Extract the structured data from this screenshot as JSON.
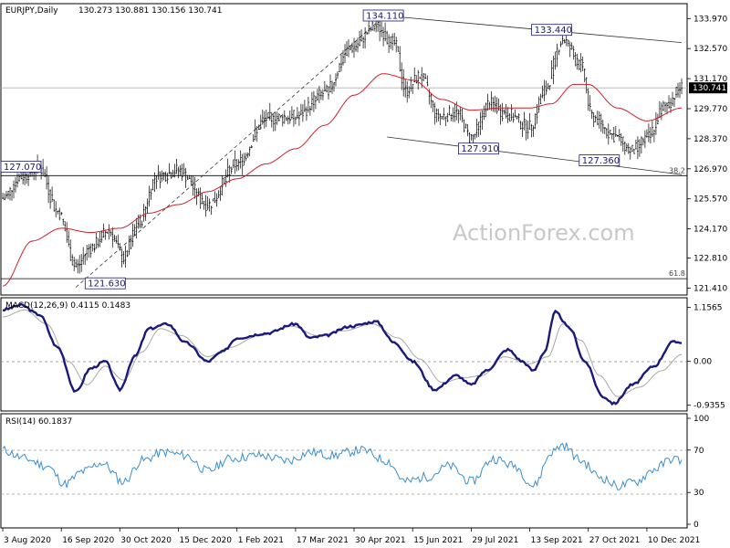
{
  "chart_data": {
    "type": "candlestick",
    "symbol_header": "EURJPY,Daily",
    "ohlc_header": "130.273 130.881 130.156 130.741",
    "watermark": "ActionForex.com",
    "price_axis": {
      "ticks": [
        "133.970",
        "132.570",
        "131.170",
        "129.770",
        "128.370",
        "126.970",
        "125.570",
        "124.170",
        "122.810",
        "121.410"
      ],
      "tick_values": [
        133.97,
        132.57,
        131.17,
        129.77,
        128.37,
        126.97,
        125.57,
        124.17,
        122.81,
        121.41
      ],
      "ylim": [
        121.3,
        134.45
      ],
      "last_price": "130.741",
      "last_value": 130.741
    },
    "x_axis": {
      "labels": [
        "3 Aug 2020",
        "16 Sep 2020",
        "30 Oct 2020",
        "15 Dec 2020",
        "1 Feb 2021",
        "17 Mar 2021",
        "30 Apr 2021",
        "15 Jun 2021",
        "29 Jul 2021",
        "13 Sep 2021",
        "27 Oct 2021",
        "10 Dec 2021"
      ],
      "label_bar_index": [
        0,
        32,
        64,
        96,
        128,
        160,
        192,
        224,
        256,
        288,
        320,
        352
      ],
      "total_bars": 372
    },
    "price_close_knots": [
      [
        0,
        125.6
      ],
      [
        10,
        126.6
      ],
      [
        20,
        127.0
      ],
      [
        30,
        125.0
      ],
      [
        40,
        122.4
      ],
      [
        48,
        123.3
      ],
      [
        58,
        124.1
      ],
      [
        66,
        122.8
      ],
      [
        74,
        124.4
      ],
      [
        84,
        126.6
      ],
      [
        96,
        126.9
      ],
      [
        112,
        125.3
      ],
      [
        128,
        127.2
      ],
      [
        144,
        129.3
      ],
      [
        160,
        129.4
      ],
      [
        176,
        130.5
      ],
      [
        190,
        132.6
      ],
      [
        204,
        133.6
      ],
      [
        214,
        132.8
      ],
      [
        220,
        130.6
      ],
      [
        228,
        131.3
      ],
      [
        238,
        129.4
      ],
      [
        248,
        129.6
      ],
      [
        256,
        128.4
      ],
      [
        266,
        130.0
      ],
      [
        276,
        129.5
      ],
      [
        288,
        128.9
      ],
      [
        296,
        130.6
      ],
      [
        306,
        133.0
      ],
      [
        316,
        131.8
      ],
      [
        322,
        129.4
      ],
      [
        334,
        128.5
      ],
      [
        344,
        127.8
      ],
      [
        352,
        128.4
      ],
      [
        362,
        129.9
      ],
      [
        371,
        130.741
      ]
    ],
    "moving_average_knots": [
      [
        0,
        121.5
      ],
      [
        16,
        123.6
      ],
      [
        32,
        124.2
      ],
      [
        48,
        124.0
      ],
      [
        64,
        124.2
      ],
      [
        80,
        124.9
      ],
      [
        96,
        125.3
      ],
      [
        112,
        125.9
      ],
      [
        128,
        126.5
      ],
      [
        144,
        127.2
      ],
      [
        160,
        127.9
      ],
      [
        176,
        129.0
      ],
      [
        192,
        130.4
      ],
      [
        208,
        131.4
      ],
      [
        224,
        131.1
      ],
      [
        240,
        130.2
      ],
      [
        256,
        129.7
      ],
      [
        272,
        129.8
      ],
      [
        288,
        129.8
      ],
      [
        300,
        130.0
      ],
      [
        312,
        130.9
      ],
      [
        320,
        130.9
      ],
      [
        336,
        129.8
      ],
      [
        352,
        129.2
      ],
      [
        371,
        129.8
      ]
    ],
    "annotations": [
      {
        "text": "134.110",
        "bar": 208,
        "value": 134.11
      },
      {
        "text": "133.440",
        "bar": 300,
        "value": 133.44
      },
      {
        "text": "127.070",
        "bar": 0,
        "value": 127.07
      },
      {
        "text": "121.630",
        "bar": 56,
        "value": 121.63
      },
      {
        "text": "127.910",
        "bar": 260,
        "value": 127.91
      },
      {
        "text": "127.360",
        "bar": 326,
        "value": 127.36
      }
    ],
    "fib_levels": [
      {
        "label": "38.2",
        "value": 126.65
      },
      {
        "label": "61.8",
        "value": 121.85
      }
    ],
    "horizontal_lines": [
      130.741,
      126.65,
      121.85
    ],
    "trendlines": [
      {
        "style": "dashed",
        "from": [
          40,
          121.45
        ],
        "to": [
          210,
          134.2
        ]
      },
      {
        "style": "solid",
        "from": [
          208,
          134.11
        ],
        "to": [
          371,
          132.85
        ]
      },
      {
        "style": "solid",
        "from": [
          210,
          128.45
        ],
        "to": [
          371,
          126.7
        ]
      }
    ],
    "macd": {
      "label": "MACD(12,26,9) 0.4115 0.1483",
      "ticks": [
        "1.1565",
        "0.00",
        "-0.9355"
      ],
      "tick_values": [
        1.1565,
        0.0,
        -0.9355
      ],
      "ylim": [
        -1.0,
        1.3
      ],
      "knots": [
        [
          0,
          1.1
        ],
        [
          10,
          1.2
        ],
        [
          20,
          1.0
        ],
        [
          30,
          0.3
        ],
        [
          40,
          -0.65
        ],
        [
          48,
          -0.15
        ],
        [
          56,
          0.0
        ],
        [
          64,
          -0.6
        ],
        [
          72,
          0.1
        ],
        [
          80,
          0.7
        ],
        [
          90,
          0.8
        ],
        [
          100,
          0.4
        ],
        [
          112,
          0.0
        ],
        [
          120,
          0.2
        ],
        [
          128,
          0.5
        ],
        [
          144,
          0.6
        ],
        [
          160,
          0.8
        ],
        [
          168,
          0.5
        ],
        [
          176,
          0.55
        ],
        [
          190,
          0.75
        ],
        [
          204,
          0.85
        ],
        [
          214,
          0.4
        ],
        [
          224,
          0.0
        ],
        [
          236,
          -0.6
        ],
        [
          248,
          -0.3
        ],
        [
          256,
          -0.5
        ],
        [
          264,
          -0.2
        ],
        [
          276,
          0.25
        ],
        [
          284,
          0.0
        ],
        [
          290,
          -0.2
        ],
        [
          296,
          0.2
        ],
        [
          302,
          1.05
        ],
        [
          310,
          0.7
        ],
        [
          318,
          0.0
        ],
        [
          328,
          -0.75
        ],
        [
          334,
          -0.9
        ],
        [
          344,
          -0.5
        ],
        [
          356,
          -0.1
        ],
        [
          366,
          0.41
        ],
        [
          371,
          0.41
        ]
      ],
      "signal_knots": [
        [
          0,
          0.95
        ],
        [
          12,
          1.1
        ],
        [
          24,
          0.8
        ],
        [
          36,
          0.0
        ],
        [
          46,
          -0.5
        ],
        [
          56,
          -0.1
        ],
        [
          66,
          -0.4
        ],
        [
          76,
          0.2
        ],
        [
          86,
          0.7
        ],
        [
          98,
          0.55
        ],
        [
          112,
          0.1
        ],
        [
          124,
          0.3
        ],
        [
          140,
          0.55
        ],
        [
          158,
          0.75
        ],
        [
          172,
          0.55
        ],
        [
          186,
          0.65
        ],
        [
          202,
          0.8
        ],
        [
          216,
          0.5
        ],
        [
          228,
          0.05
        ],
        [
          240,
          -0.45
        ],
        [
          252,
          -0.35
        ],
        [
          262,
          -0.3
        ],
        [
          274,
          0.1
        ],
        [
          288,
          -0.05
        ],
        [
          298,
          0.1
        ],
        [
          306,
          0.8
        ],
        [
          316,
          0.45
        ],
        [
          326,
          -0.3
        ],
        [
          336,
          -0.75
        ],
        [
          348,
          -0.55
        ],
        [
          360,
          -0.2
        ],
        [
          371,
          0.148
        ]
      ]
    },
    "rsi": {
      "label": "RSI(14) 60.1837",
      "ticks": [
        "100",
        "70",
        "30",
        "0"
      ],
      "tick_values": [
        100,
        70,
        30,
        0
      ],
      "ylim": [
        0,
        100
      ],
      "knots": [
        [
          0,
          70
        ],
        [
          12,
          62
        ],
        [
          24,
          55
        ],
        [
          34,
          38
        ],
        [
          44,
          50
        ],
        [
          54,
          58
        ],
        [
          66,
          40
        ],
        [
          76,
          60
        ],
        [
          88,
          68
        ],
        [
          100,
          65
        ],
        [
          112,
          50
        ],
        [
          124,
          62
        ],
        [
          140,
          65
        ],
        [
          156,
          60
        ],
        [
          168,
          68
        ],
        [
          180,
          65
        ],
        [
          196,
          70
        ],
        [
          210,
          60
        ],
        [
          220,
          40
        ],
        [
          232,
          45
        ],
        [
          244,
          55
        ],
        [
          256,
          40
        ],
        [
          268,
          62
        ],
        [
          280,
          55
        ],
        [
          290,
          36
        ],
        [
          300,
          68
        ],
        [
          306,
          75
        ],
        [
          316,
          60
        ],
        [
          326,
          45
        ],
        [
          336,
          36
        ],
        [
          346,
          40
        ],
        [
          356,
          52
        ],
        [
          366,
          62
        ],
        [
          371,
          60.18
        ]
      ]
    }
  }
}
